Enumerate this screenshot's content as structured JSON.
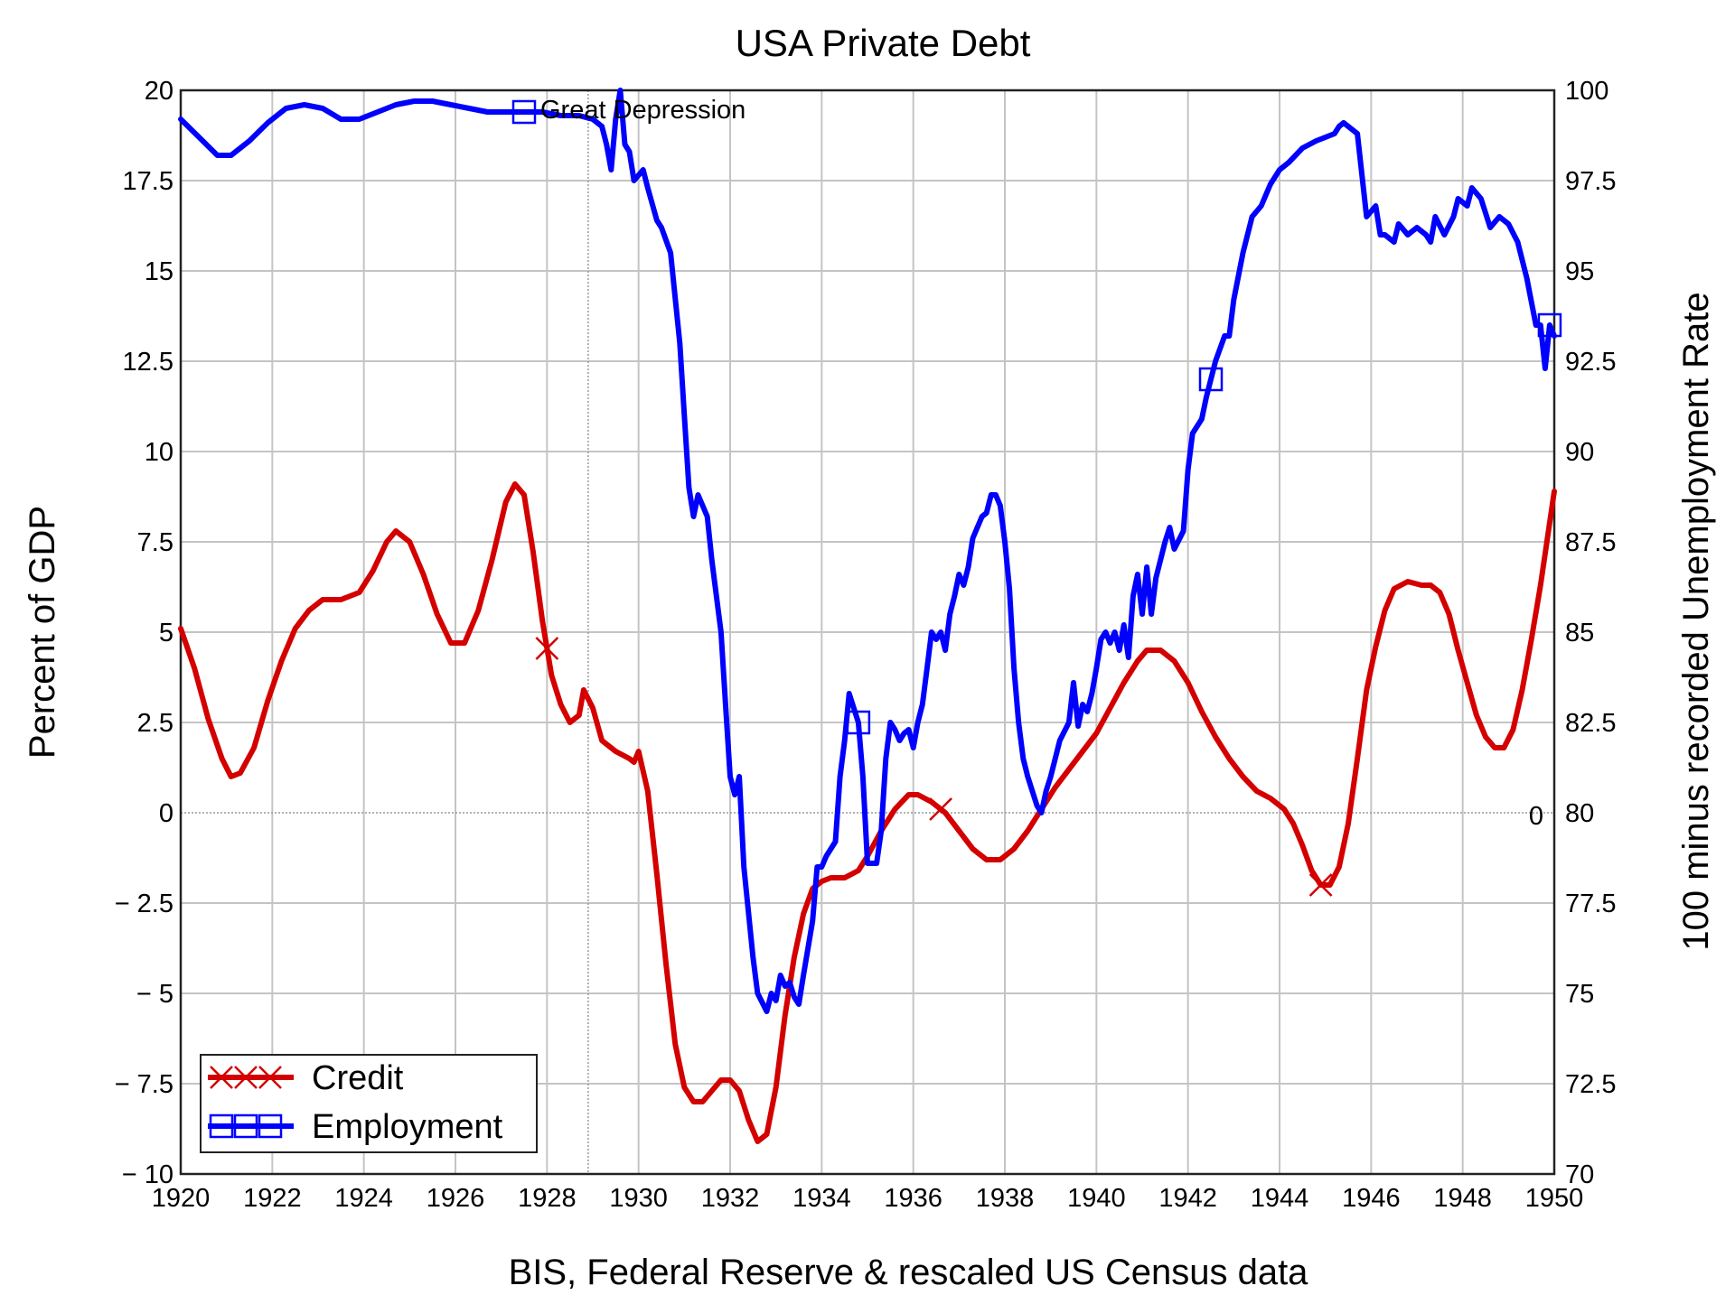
{
  "chart_data": {
    "type": "line",
    "title": "USA Private Debt",
    "xlabel": "BIS, Federal Reserve & rescaled US Census data",
    "ylabel": "Percent of GDP",
    "y2label": "100 minus recorded Unemployment Rate",
    "xlim": [
      1920,
      1950
    ],
    "ylim": [
      -10,
      20
    ],
    "y2lim": [
      70,
      100
    ],
    "grid": true,
    "legend_position": "bottom-left",
    "x_ticks": [
      "1920",
      "1922",
      "1924",
      "1926",
      "1928",
      "1930",
      "1932",
      "1934",
      "1936",
      "1938",
      "1940",
      "1942",
      "1944",
      "1946",
      "1948",
      "1950"
    ],
    "y_ticks": [
      "20",
      "17.5",
      "15",
      "12.5",
      "10",
      "7.5",
      "5",
      "2.5",
      "0",
      "− 2.5",
      "− 5",
      "− 7.5",
      "− 10"
    ],
    "y2_ticks": [
      "100",
      "97.5",
      "95",
      "92.5",
      "90",
      "87.5",
      "85",
      "82.5",
      "80",
      "77.5",
      "75",
      "72.5",
      "70"
    ],
    "annotation": "Great Depression",
    "annotation_x": 1928.9,
    "extra_zero_label": "0",
    "series": [
      {
        "name": "Credit",
        "axis": "left",
        "color": "#d40000",
        "marker": "x",
        "marker_x": [
          1928.0,
          1936.6,
          1944.9
        ],
        "x": [
          1920.0,
          1920.3,
          1920.6,
          1920.9,
          1921.1,
          1921.3,
          1921.6,
          1921.9,
          1922.2,
          1922.5,
          1922.8,
          1923.1,
          1923.5,
          1923.9,
          1924.2,
          1924.5,
          1924.7,
          1925.0,
          1925.3,
          1925.6,
          1925.9,
          1926.2,
          1926.5,
          1926.8,
          1927.1,
          1927.3,
          1927.5,
          1927.7,
          1927.9,
          1928.1,
          1928.3,
          1928.5,
          1928.7,
          1928.8,
          1929.0,
          1929.2,
          1929.5,
          1929.8,
          1929.9,
          1930.0,
          1930.2,
          1930.4,
          1930.6,
          1930.8,
          1931.0,
          1931.2,
          1931.4,
          1931.6,
          1931.8,
          1932.0,
          1932.2,
          1932.4,
          1932.6,
          1932.8,
          1933.0,
          1933.2,
          1933.4,
          1933.6,
          1933.8,
          1934.0,
          1934.2,
          1934.5,
          1934.8,
          1935.0,
          1935.3,
          1935.6,
          1935.9,
          1936.1,
          1936.4,
          1936.7,
          1937.0,
          1937.3,
          1937.6,
          1937.9,
          1938.2,
          1938.5,
          1938.8,
          1939.1,
          1939.4,
          1939.7,
          1940.0,
          1940.3,
          1940.6,
          1940.9,
          1941.1,
          1941.4,
          1941.7,
          1942.0,
          1942.3,
          1942.6,
          1942.9,
          1943.2,
          1943.5,
          1943.8,
          1944.1,
          1944.3,
          1944.5,
          1944.7,
          1944.9,
          1945.1,
          1945.3,
          1945.5,
          1945.7,
          1945.9,
          1946.1,
          1946.3,
          1946.5,
          1946.8,
          1947.1,
          1947.3,
          1947.5,
          1947.7,
          1947.9,
          1948.1,
          1948.3,
          1948.5,
          1948.7,
          1948.9,
          1949.1,
          1949.3,
          1949.5,
          1949.7,
          1949.85,
          1950.0
        ],
        "y": [
          5.1,
          4.0,
          2.6,
          1.5,
          1.0,
          1.1,
          1.8,
          3.1,
          4.2,
          5.1,
          5.6,
          5.9,
          5.9,
          6.1,
          6.7,
          7.5,
          7.8,
          7.5,
          6.6,
          5.5,
          4.7,
          4.7,
          5.6,
          7.0,
          8.6,
          9.1,
          8.8,
          7.2,
          5.3,
          3.8,
          3.0,
          2.5,
          2.7,
          3.4,
          2.9,
          2.0,
          1.7,
          1.5,
          1.4,
          1.7,
          0.6,
          -1.7,
          -4.2,
          -6.4,
          -7.6,
          -8.0,
          -8.0,
          -7.7,
          -7.4,
          -7.4,
          -7.7,
          -8.5,
          -9.1,
          -8.9,
          -7.6,
          -5.6,
          -4.0,
          -2.8,
          -2.1,
          -1.9,
          -1.8,
          -1.8,
          -1.6,
          -1.2,
          -0.5,
          0.1,
          0.5,
          0.5,
          0.3,
          0.0,
          -0.5,
          -1.0,
          -1.3,
          -1.3,
          -1.0,
          -0.5,
          0.1,
          0.7,
          1.2,
          1.7,
          2.2,
          2.9,
          3.6,
          4.2,
          4.5,
          4.5,
          4.2,
          3.6,
          2.8,
          2.1,
          1.5,
          1.0,
          0.6,
          0.4,
          0.1,
          -0.3,
          -0.9,
          -1.6,
          -2.0,
          -2.0,
          -1.5,
          -0.3,
          1.5,
          3.4,
          4.6,
          5.6,
          6.2,
          6.4,
          6.3,
          6.3,
          6.1,
          5.5,
          4.5,
          3.6,
          2.7,
          2.1,
          1.8,
          1.8,
          2.3,
          3.4,
          4.8,
          6.3,
          7.6,
          8.9
        ]
      },
      {
        "name": "Employment",
        "axis": "right",
        "color": "#0000ff",
        "marker": "square",
        "marker_x": [
          1927.5,
          1942.5,
          1934.8,
          1949.9
        ],
        "x": [
          1920.0,
          1920.4,
          1920.8,
          1921.1,
          1921.5,
          1921.9,
          1922.3,
          1922.7,
          1923.1,
          1923.5,
          1923.9,
          1924.3,
          1924.7,
          1925.1,
          1925.5,
          1925.9,
          1926.3,
          1926.7,
          1927.1,
          1927.5,
          1927.9,
          1928.3,
          1928.7,
          1929.0,
          1929.2,
          1929.3,
          1929.4,
          1929.5,
          1929.6,
          1929.7,
          1929.8,
          1929.9,
          1930.1,
          1930.2,
          1930.4,
          1930.5,
          1930.7,
          1930.9,
          1931.0,
          1931.1,
          1931.2,
          1931.3,
          1931.5,
          1931.6,
          1931.8,
          1931.9,
          1932.0,
          1932.1,
          1932.2,
          1932.3,
          1932.5,
          1932.6,
          1932.8,
          1932.9,
          1933.0,
          1933.1,
          1933.2,
          1933.3,
          1933.4,
          1933.5,
          1933.6,
          1933.8,
          1933.9,
          1934.0,
          1934.1,
          1934.3,
          1934.4,
          1934.5,
          1934.6,
          1934.8,
          1934.9,
          1935.0,
          1935.2,
          1935.3,
          1935.4,
          1935.5,
          1935.6,
          1935.7,
          1935.8,
          1935.9,
          1936.0,
          1936.1,
          1936.2,
          1936.3,
          1936.4,
          1936.5,
          1936.6,
          1936.7,
          1936.8,
          1936.9,
          1937.0,
          1937.1,
          1937.2,
          1937.3,
          1937.5,
          1937.6,
          1937.7,
          1937.8,
          1937.9,
          1938.0,
          1938.1,
          1938.2,
          1938.3,
          1938.4,
          1938.5,
          1938.6,
          1938.7,
          1938.8,
          1938.9,
          1939.0,
          1939.2,
          1939.4,
          1939.5,
          1939.6,
          1939.7,
          1939.8,
          1939.9,
          1940.0,
          1940.1,
          1940.2,
          1940.3,
          1940.4,
          1940.5,
          1940.6,
          1940.7,
          1940.8,
          1940.9,
          1941.0,
          1941.1,
          1941.2,
          1941.3,
          1941.5,
          1941.6,
          1941.7,
          1941.9,
          1942.0,
          1942.1,
          1942.3,
          1942.4,
          1942.6,
          1942.8,
          1942.9,
          1943.0,
          1943.2,
          1943.4,
          1943.6,
          1943.8,
          1944.0,
          1944.2,
          1944.5,
          1944.8,
          1945.0,
          1945.2,
          1945.3,
          1945.4,
          1945.5,
          1945.7,
          1945.9,
          1946.1,
          1946.2,
          1946.3,
          1946.5,
          1946.6,
          1946.8,
          1947.0,
          1947.2,
          1947.3,
          1947.4,
          1947.6,
          1947.8,
          1947.9,
          1948.1,
          1948.2,
          1948.4,
          1948.6,
          1948.8,
          1949.0,
          1949.2,
          1949.4,
          1949.6,
          1949.7,
          1949.8,
          1949.9,
          1950.0
        ],
        "y": [
          99.2,
          98.7,
          98.2,
          98.2,
          98.6,
          99.1,
          99.5,
          99.6,
          99.5,
          99.2,
          99.2,
          99.4,
          99.6,
          99.7,
          99.7,
          99.6,
          99.5,
          99.4,
          99.4,
          99.4,
          99.4,
          99.3,
          99.3,
          99.2,
          99.0,
          98.5,
          97.8,
          99.2,
          100.0,
          98.5,
          98.3,
          97.5,
          97.8,
          97.3,
          96.4,
          96.2,
          95.5,
          93.0,
          91.0,
          89.0,
          88.2,
          88.8,
          88.2,
          87.0,
          85.0,
          83.0,
          81.0,
          80.5,
          81.0,
          78.5,
          76.0,
          75.0,
          74.5,
          75.0,
          74.8,
          75.5,
          75.2,
          75.3,
          74.9,
          74.7,
          75.5,
          77.0,
          78.5,
          78.5,
          78.8,
          79.2,
          81.0,
          82.0,
          83.3,
          82.5,
          81.0,
          78.6,
          78.6,
          79.5,
          81.5,
          82.5,
          82.3,
          82.0,
          82.2,
          82.3,
          81.8,
          82.5,
          83.0,
          84.0,
          85.0,
          84.8,
          85.0,
          84.5,
          85.5,
          86.0,
          86.6,
          86.3,
          86.8,
          87.6,
          88.2,
          88.3,
          88.8,
          88.8,
          88.5,
          87.5,
          86.2,
          84.0,
          82.5,
          81.5,
          81.0,
          80.6,
          80.2,
          80.0,
          80.6,
          81.0,
          82.0,
          82.5,
          83.6,
          82.4,
          83.0,
          82.8,
          83.3,
          84.0,
          84.8,
          85.0,
          84.7,
          85.0,
          84.5,
          85.2,
          84.3,
          86.0,
          86.6,
          85.5,
          86.8,
          85.5,
          86.5,
          87.5,
          87.9,
          87.3,
          87.8,
          89.5,
          90.5,
          90.9,
          91.5,
          92.5,
          93.2,
          93.2,
          94.2,
          95.5,
          96.5,
          96.8,
          97.4,
          97.8,
          98.0,
          98.4,
          98.6,
          98.7,
          98.8,
          99.0,
          99.1,
          99.0,
          98.8,
          96.5,
          96.8,
          96.0,
          96.0,
          95.8,
          96.3,
          96.0,
          96.2,
          96.0,
          95.8,
          96.5,
          96.0,
          96.5,
          97.0,
          96.8,
          97.3,
          97.0,
          96.2,
          96.5,
          96.3,
          95.8,
          94.8,
          93.5,
          93.5,
          92.3,
          93.5,
          93.2
        ]
      }
    ]
  }
}
